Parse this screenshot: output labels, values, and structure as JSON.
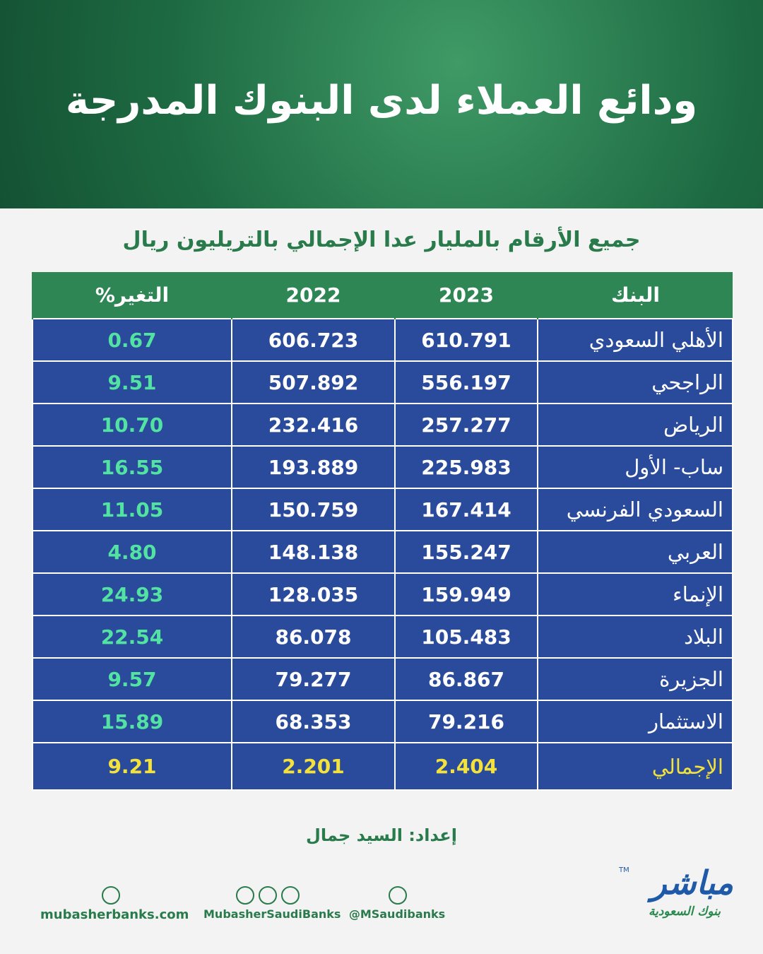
{
  "header": {
    "title": "ودائع العملاء لدى البنوك المدرجة"
  },
  "subtitle": "جميع الأرقام بالمليار عدا الإجمالي بالتريليون ريال",
  "table": {
    "headers": [
      "البنك",
      "2023",
      "2022",
      "التغير%"
    ],
    "rows": [
      [
        "الأهلي السعودي",
        "610.791",
        "606.723",
        "0.67"
      ],
      [
        "الراجحي",
        "556.197",
        "507.892",
        "9.51"
      ],
      [
        "الرياض",
        "257.277",
        "232.416",
        "10.70"
      ],
      [
        "ساب- الأول",
        "225.983",
        "193.889",
        "16.55"
      ],
      [
        "السعودي الفرنسي",
        "167.414",
        "150.759",
        "11.05"
      ],
      [
        "العربي",
        "155.247",
        "148.138",
        "4.80"
      ],
      [
        "الإنماء",
        "159.949",
        "128.035",
        "24.93"
      ],
      [
        "البلاد",
        "105.483",
        "86.078",
        "22.54"
      ],
      [
        "الجزيرة",
        "86.867",
        "79.277",
        "9.57"
      ],
      [
        "الاستثمار",
        "79.216",
        "68.353",
        "15.89"
      ]
    ],
    "total": [
      "الإجمالي",
      "2.404",
      "2.201",
      "9.21"
    ]
  },
  "footer": {
    "credit": "إعداد: السيد جمال",
    "links": [
      "mubasherbanks.com",
      "MubasherSaudiBanks",
      "@MSaudibanks"
    ],
    "logo": {
      "name": "مباشر",
      "tagline": "بنوك السعودية",
      "mark": "TM"
    }
  }
}
